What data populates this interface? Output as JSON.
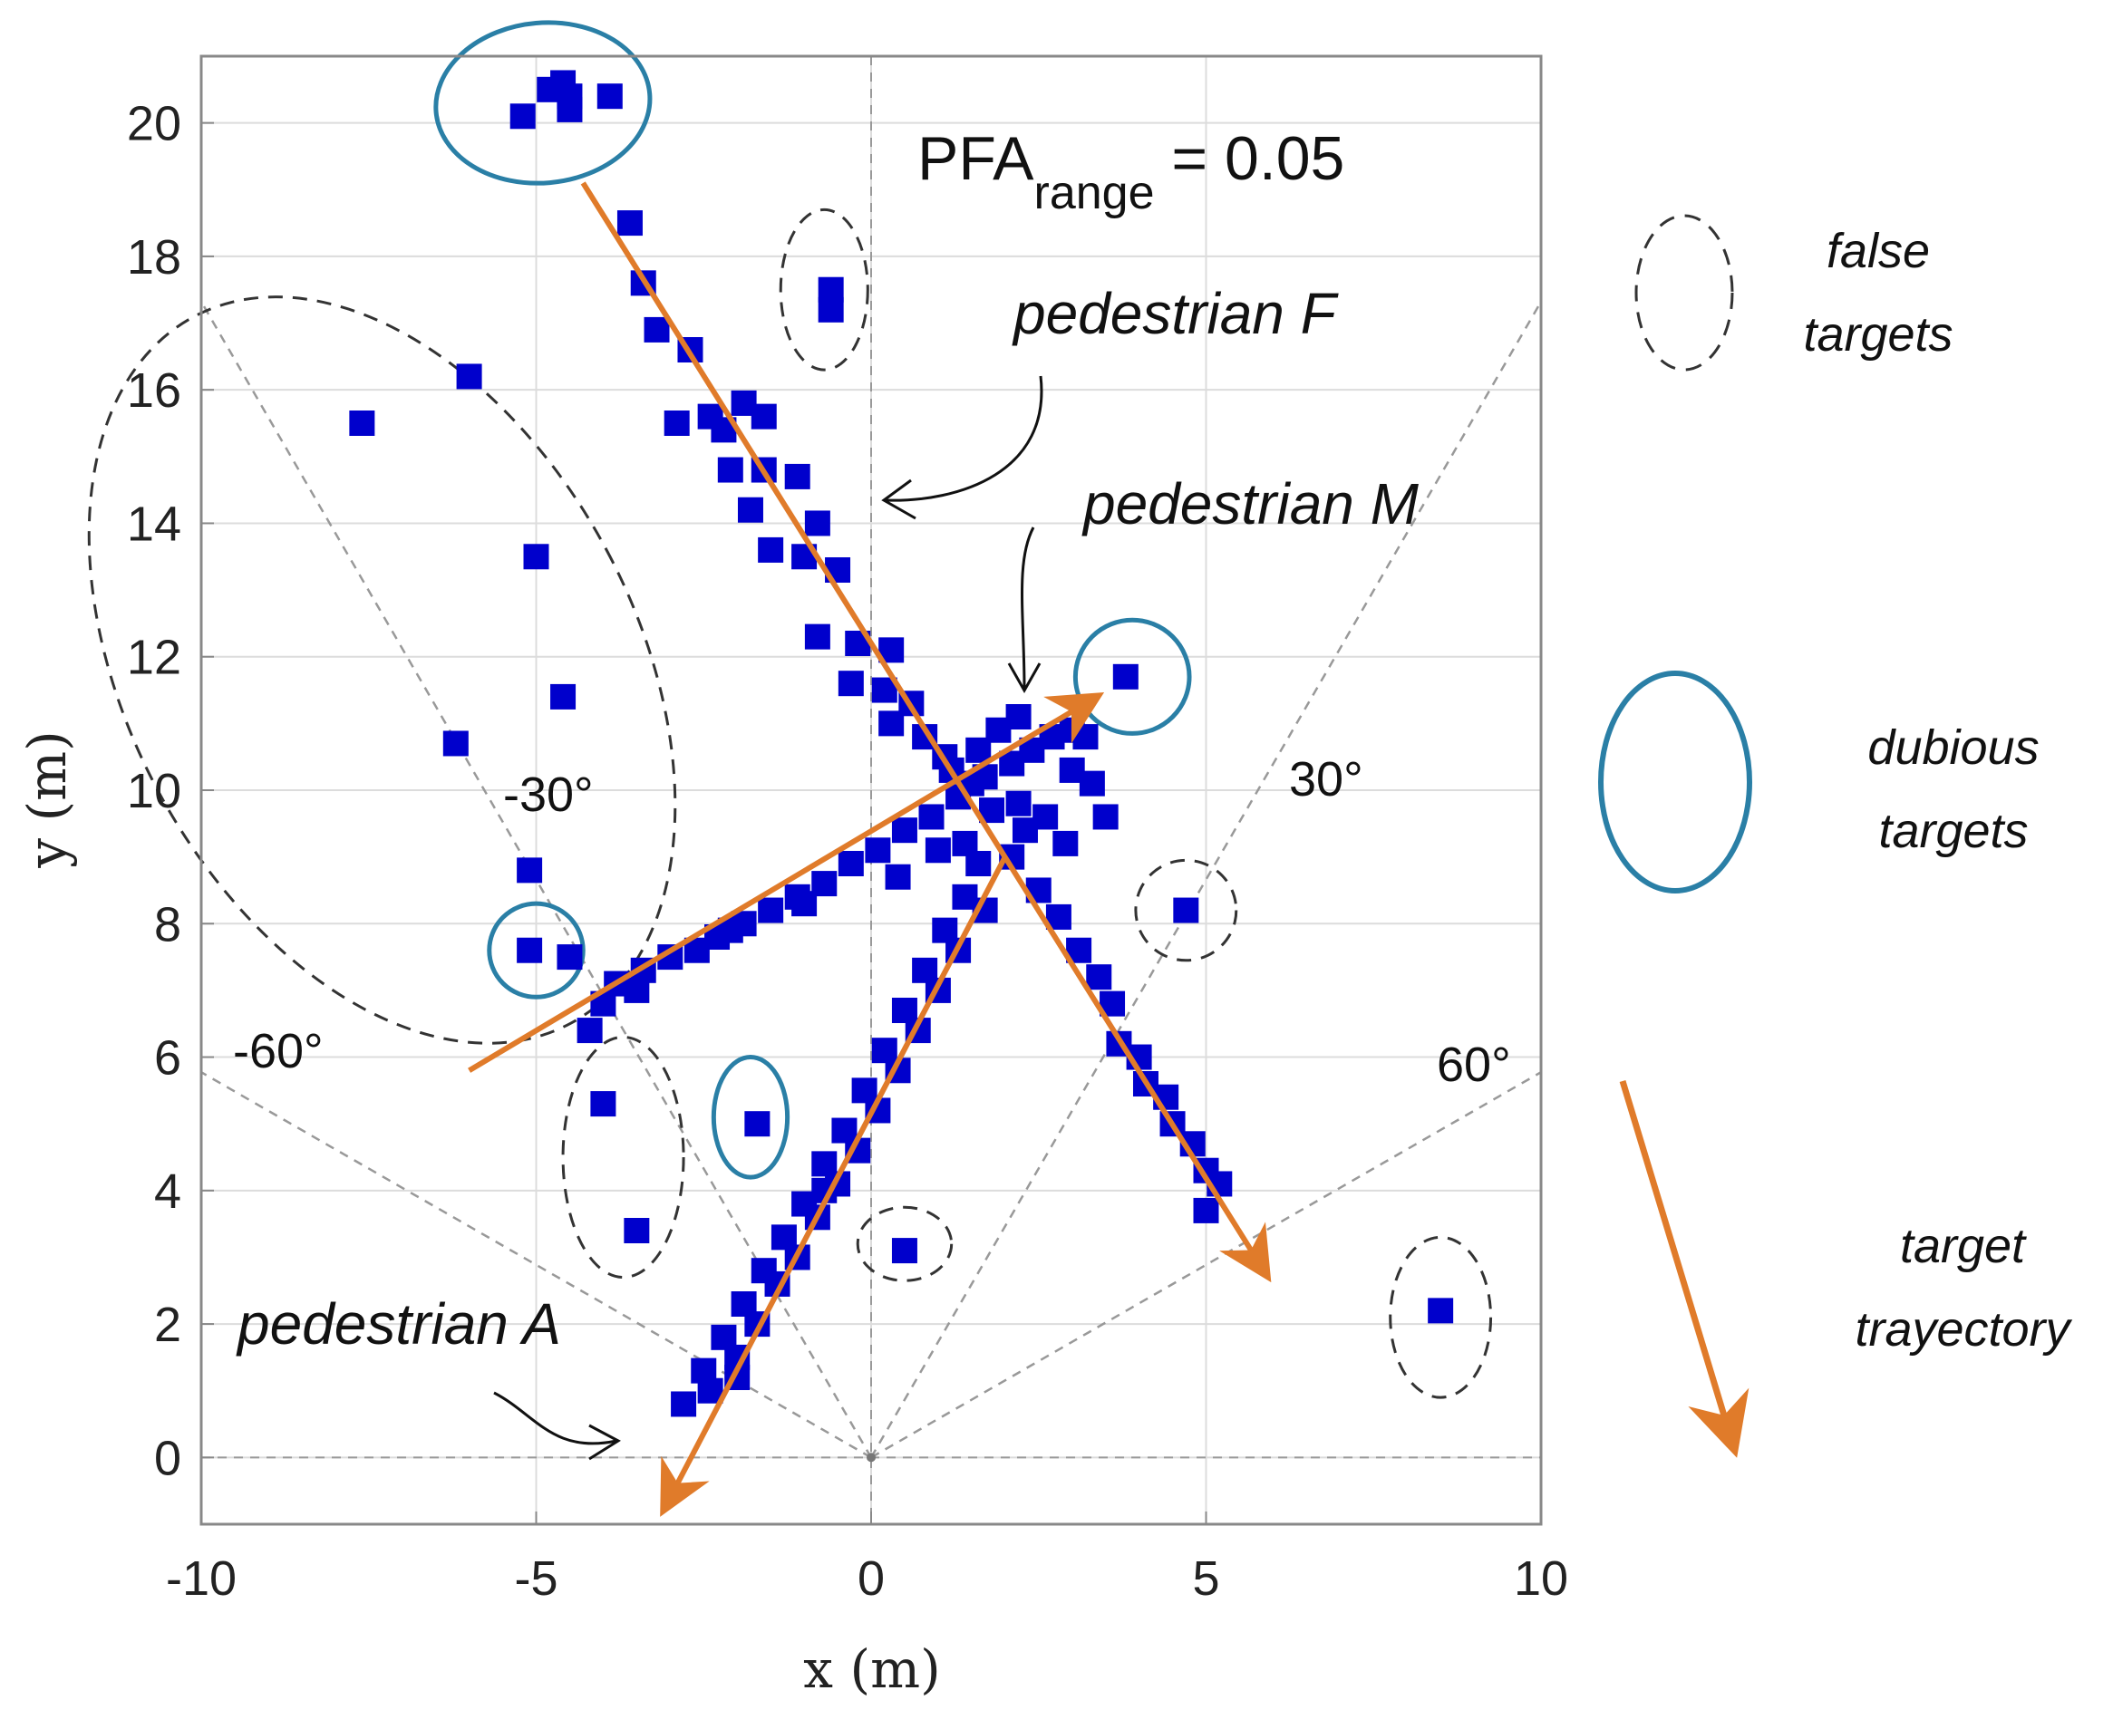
{
  "chart_data": {
    "type": "scatter",
    "title": "",
    "xlabel": "x (m)",
    "ylabel": "y (m)",
    "xlim": [
      -10,
      10
    ],
    "ylim": [
      -1,
      21
    ],
    "xticks": [
      -10,
      -5,
      0,
      5,
      10
    ],
    "yticks": [
      0,
      2,
      4,
      6,
      8,
      10,
      12,
      14,
      16,
      18,
      20
    ],
    "grid": true,
    "annotation_pfa": {
      "main": "PFA",
      "sub": "range",
      "rest": " = 0.05"
    },
    "angle_lines": [
      {
        "angle": -60,
        "label": "-60°"
      },
      {
        "angle": -30,
        "label": "-30°"
      },
      {
        "angle": 30,
        "label": "30°"
      },
      {
        "angle": 60,
        "label": "60°"
      }
    ],
    "pedestrian_labels": [
      "pedestrian F",
      "pedestrian M",
      "pedestrian A"
    ],
    "trajectories": [
      {
        "name": "pedestrian F",
        "from": [
          -4.3,
          19.1
        ],
        "to": [
          5.8,
          2.9
        ]
      },
      {
        "name": "pedestrian M",
        "from": [
          -6.0,
          5.8
        ],
        "to": [
          3.2,
          11.3
        ]
      },
      {
        "name": "pedestrian A",
        "from": [
          2.0,
          9.0
        ],
        "to": [
          -3.0,
          -0.6
        ]
      }
    ],
    "detections": {
      "track_F": [
        [
          -3.6,
          18.5
        ],
        [
          -3.4,
          17.6
        ],
        [
          -3.2,
          16.9
        ],
        [
          -2.7,
          16.6
        ],
        [
          -2.9,
          15.5
        ],
        [
          -2.4,
          15.6
        ],
        [
          -2.2,
          15.4
        ],
        [
          -1.9,
          15.8
        ],
        [
          -1.6,
          15.6
        ],
        [
          -2.1,
          14.8
        ],
        [
          -1.6,
          14.8
        ],
        [
          -1.8,
          14.2
        ],
        [
          -1.1,
          14.7
        ],
        [
          -0.8,
          14.0
        ],
        [
          -1.5,
          13.6
        ],
        [
          -1.0,
          13.5
        ],
        [
          -0.5,
          13.3
        ],
        [
          -0.8,
          12.3
        ],
        [
          -0.2,
          12.2
        ],
        [
          0.3,
          12.1
        ],
        [
          -0.3,
          11.6
        ],
        [
          0.2,
          11.5
        ],
        [
          0.6,
          11.3
        ],
        [
          0.3,
          11.0
        ],
        [
          0.8,
          10.8
        ],
        [
          1.1,
          10.5
        ],
        [
          1.5,
          10.1
        ],
        [
          1.8,
          9.7
        ],
        [
          2.3,
          9.4
        ],
        [
          2.1,
          9.0
        ],
        [
          2.5,
          8.5
        ],
        [
          2.8,
          8.1
        ],
        [
          3.1,
          7.6
        ],
        [
          3.4,
          7.2
        ],
        [
          3.6,
          6.8
        ],
        [
          3.7,
          6.2
        ],
        [
          4.0,
          6.0
        ],
        [
          4.1,
          5.6
        ],
        [
          4.4,
          5.4
        ],
        [
          4.5,
          5.0
        ],
        [
          4.8,
          4.7
        ],
        [
          5.0,
          4.3
        ],
        [
          5.2,
          4.1
        ],
        [
          5.0,
          3.7
        ],
        [
          -4.8,
          20.5
        ],
        [
          -4.5,
          20.4
        ]
      ],
      "track_M": [
        [
          -3.8,
          7.1
        ],
        [
          -3.4,
          7.3
        ],
        [
          -3.0,
          7.5
        ],
        [
          -2.6,
          7.6
        ],
        [
          -2.3,
          7.8
        ],
        [
          -1.9,
          8.0
        ],
        [
          -1.5,
          8.2
        ],
        [
          -1.1,
          8.4
        ],
        [
          -0.7,
          8.6
        ],
        [
          -0.3,
          8.9
        ],
        [
          0.1,
          9.1
        ],
        [
          0.5,
          9.4
        ],
        [
          0.9,
          9.6
        ],
        [
          1.3,
          9.9
        ],
        [
          1.7,
          10.2
        ],
        [
          2.1,
          10.4
        ],
        [
          2.4,
          10.6
        ],
        [
          2.7,
          10.8
        ],
        [
          3.0,
          10.9
        ],
        [
          -4.0,
          6.8
        ],
        [
          -4.2,
          6.4
        ],
        [
          -3.5,
          7.0
        ],
        [
          -4.5,
          7.5
        ],
        [
          -2.1,
          7.9
        ],
        [
          -1.0,
          8.3
        ],
        [
          0.4,
          8.7
        ],
        [
          1.0,
          9.1
        ],
        [
          1.4,
          9.2
        ],
        [
          2.2,
          9.8
        ],
        [
          2.6,
          9.6
        ],
        [
          3.3,
          10.1
        ],
        [
          3.5,
          9.6
        ],
        [
          2.9,
          9.2
        ],
        [
          3.0,
          10.3
        ],
        [
          3.2,
          10.8
        ],
        [
          1.6,
          10.6
        ],
        [
          1.9,
          10.9
        ],
        [
          2.2,
          11.1
        ],
        [
          1.2,
          10.3
        ]
      ],
      "track_A": [
        [
          -2.8,
          0.8
        ],
        [
          -2.5,
          1.3
        ],
        [
          -2.2,
          1.8
        ],
        [
          -1.9,
          2.3
        ],
        [
          -1.6,
          2.8
        ],
        [
          -1.3,
          3.3
        ],
        [
          -1.0,
          3.8
        ],
        [
          -0.7,
          4.4
        ],
        [
          -0.4,
          4.9
        ],
        [
          -0.1,
          5.5
        ],
        [
          0.2,
          6.1
        ],
        [
          0.5,
          6.7
        ],
        [
          0.8,
          7.3
        ],
        [
          1.1,
          7.9
        ],
        [
          1.4,
          8.4
        ],
        [
          1.6,
          8.9
        ],
        [
          -2.4,
          1.0
        ],
        [
          -2.0,
          1.5
        ],
        [
          -1.7,
          2.0
        ],
        [
          -1.4,
          2.6
        ],
        [
          -1.1,
          3.0
        ],
        [
          -0.8,
          3.6
        ],
        [
          -0.5,
          4.1
        ],
        [
          -0.2,
          4.6
        ],
        [
          0.1,
          5.2
        ],
        [
          0.4,
          5.8
        ],
        [
          0.7,
          6.4
        ],
        [
          1.0,
          7.0
        ],
        [
          1.3,
          7.6
        ],
        [
          1.7,
          8.2
        ],
        [
          -0.7,
          4.0
        ],
        [
          -2.0,
          1.2
        ]
      ],
      "false_targets": [
        [
          -7.6,
          15.5
        ],
        [
          -6.0,
          16.2
        ],
        [
          -5.0,
          13.5
        ],
        [
          -4.6,
          11.4
        ],
        [
          -6.2,
          10.7
        ],
        [
          -5.1,
          8.8
        ],
        [
          -0.6,
          17.5
        ],
        [
          -0.6,
          17.2
        ],
        [
          -4.0,
          5.3
        ],
        [
          -3.5,
          3.4
        ],
        [
          0.5,
          3.1
        ],
        [
          4.7,
          8.2
        ],
        [
          8.5,
          2.2
        ]
      ],
      "dubious_targets": [
        [
          -5.2,
          20.1
        ],
        [
          -4.5,
          20.2
        ],
        [
          -3.9,
          20.4
        ],
        [
          -4.6,
          20.6
        ],
        [
          3.8,
          11.7
        ],
        [
          -5.1,
          7.6
        ],
        [
          -1.7,
          5.0
        ]
      ]
    },
    "false_regions": [
      {
        "cx": -7.3,
        "cy": 11.8,
        "rx": 3.8,
        "ry": 6.0,
        "rot": -28
      },
      {
        "cx": -0.7,
        "cy": 17.5,
        "rx": 0.65,
        "ry": 1.2,
        "rot": 0
      },
      {
        "cx": -3.7,
        "cy": 4.5,
        "rx": 0.9,
        "ry": 1.8,
        "rot": 0
      },
      {
        "cx": 0.5,
        "cy": 3.2,
        "rx": 0.7,
        "ry": 0.55,
        "rot": 0
      },
      {
        "cx": 4.7,
        "cy": 8.2,
        "rx": 0.75,
        "ry": 0.75,
        "rot": 0
      },
      {
        "cx": 8.5,
        "cy": 2.1,
        "rx": 0.75,
        "ry": 1.2,
        "rot": 0
      }
    ],
    "dubious_regions": [
      {
        "cx": -4.9,
        "cy": 20.3,
        "rx": 1.6,
        "ry": 1.2,
        "rot": -5
      },
      {
        "cx": 3.9,
        "cy": 11.7,
        "rx": 0.85,
        "ry": 0.85,
        "rot": 0
      },
      {
        "cx": -5.0,
        "cy": 7.6,
        "rx": 0.7,
        "ry": 0.7,
        "rot": 0
      },
      {
        "cx": -1.8,
        "cy": 5.1,
        "rx": 0.55,
        "ry": 0.9,
        "rot": 0
      }
    ],
    "legend": [
      {
        "kind": "dashed-ellipse",
        "label_line1": "false",
        "label_line2": "targets"
      },
      {
        "kind": "solid-ellipse",
        "label_line1": "dubious",
        "label_line2": "targets"
      },
      {
        "kind": "arrow",
        "label_line1": "target",
        "label_line2": "trayectory"
      }
    ],
    "colors": {
      "marker": "#0000cc",
      "trajectory": "#e07b2a",
      "dubious": "#2a7fa6",
      "false": "#333333",
      "grid": "#dcdcdc",
      "axis": "#888888"
    }
  }
}
